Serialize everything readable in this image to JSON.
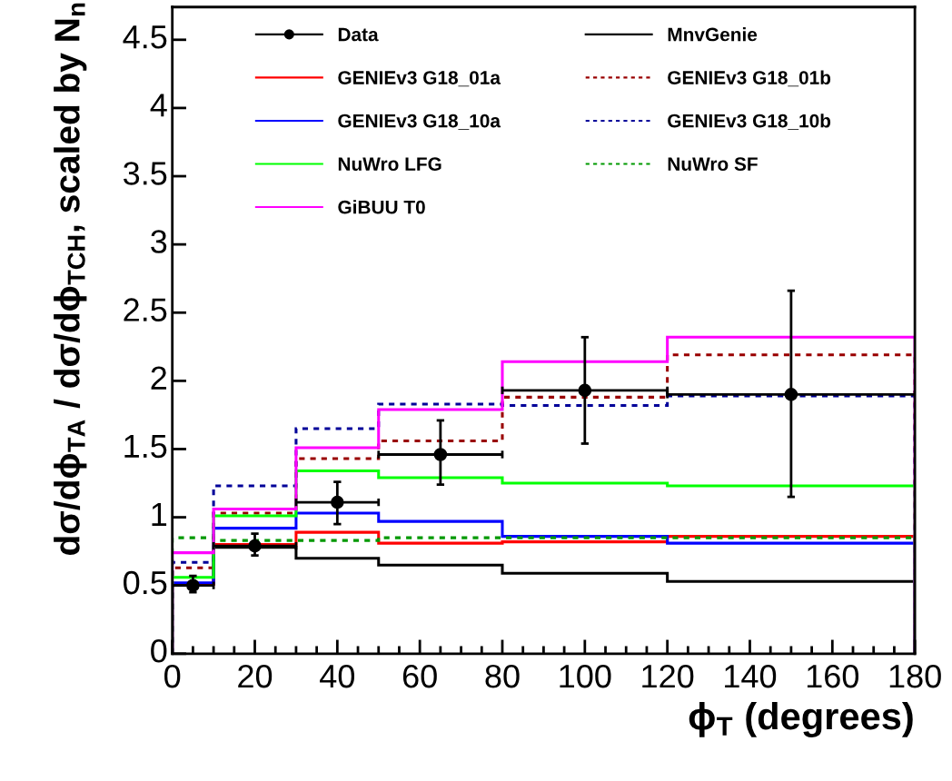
{
  "chart_data": {
    "type": "histogram",
    "xlabel": "ϕ$_{T}$ (degrees)",
    "ylabel": "dσ/dϕ$_{TA}$ / dσ/dϕ$_{TCH}$, scaled by N$_{n}$",
    "bins": [
      0,
      10,
      30,
      50,
      80,
      120,
      180
    ],
    "xlim": [
      0,
      180
    ],
    "xticks": [
      0,
      20,
      40,
      60,
      80,
      100,
      120,
      140,
      160,
      180
    ],
    "ylim": [
      0,
      4.74
    ],
    "yticks": [
      0,
      0.5,
      1,
      1.5,
      2,
      2.5,
      3,
      3.5,
      4,
      4.5
    ],
    "grid": false,
    "legend": "top",
    "series": [
      {
        "name": "Data",
        "type": "scatter",
        "marker": "circle",
        "color": "#000000",
        "x": [
          5,
          20,
          40,
          65,
          100,
          150
        ],
        "values": [
          0.5,
          0.79,
          1.11,
          1.46,
          1.93,
          1.9
        ],
        "errors": [
          [
            0.45,
            0.57
          ],
          [
            0.72,
            0.88
          ],
          [
            0.95,
            1.26
          ],
          [
            1.24,
            1.71
          ],
          [
            1.54,
            2.32
          ],
          [
            1.15,
            2.66
          ]
        ],
        "xerrors": [
          [
            0,
            10
          ],
          [
            10,
            30
          ],
          [
            30,
            50
          ],
          [
            50,
            80
          ],
          [
            80,
            120
          ],
          [
            120,
            180
          ]
        ]
      },
      {
        "name": "MnvGenie",
        "color": "#000000",
        "line_style": "solid",
        "values": [
          0.51,
          0.78,
          0.7,
          0.65,
          0.59,
          0.53
        ]
      },
      {
        "name": "GENIEv3 G18_01a",
        "color": "#ff0000",
        "line_style": "solid",
        "values": [
          0.51,
          0.8,
          0.89,
          0.81,
          0.82,
          0.86
        ]
      },
      {
        "name": "GENIEv3 G18_01b",
        "color": "#990000",
        "line_style": "dotted",
        "values": [
          0.63,
          1.03,
          1.43,
          1.56,
          1.88,
          2.19
        ]
      },
      {
        "name": "GENIEv3 G18_10a",
        "color": "#0000ff",
        "line_style": "solid",
        "values": [
          0.52,
          0.92,
          1.03,
          0.97,
          0.86,
          0.81
        ]
      },
      {
        "name": "GENIEv3 G18_10b",
        "color": "#000099",
        "line_style": "dotted",
        "values": [
          0.67,
          1.23,
          1.65,
          1.83,
          1.82,
          1.89
        ]
      },
      {
        "name": "NuWro LFG",
        "color": "#00ff00",
        "line_style": "solid",
        "values": [
          0.56,
          1.01,
          1.34,
          1.29,
          1.25,
          1.23
        ]
      },
      {
        "name": "NuWro SF",
        "color": "#009900",
        "line_style": "dotted",
        "values": [
          0.85,
          0.83,
          0.83,
          0.85,
          0.85,
          0.85
        ]
      },
      {
        "name": "GiBUU T0",
        "color": "#ff00ff",
        "line_style": "solid",
        "values": [
          0.74,
          1.06,
          1.51,
          1.79,
          2.14,
          2.32
        ]
      }
    ]
  }
}
